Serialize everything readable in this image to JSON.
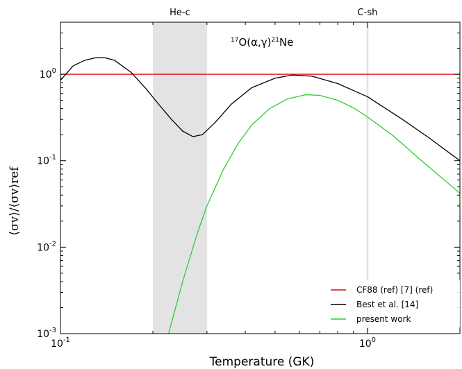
{
  "chart_data": {
    "type": "line",
    "title": "",
    "reaction_label": {
      "sup1": "17",
      "mid": "O(α,γ)",
      "sup2": "21",
      "end": "Ne"
    },
    "xlabel": "Temperature (GK)",
    "ylabel": "⟨σv⟩/⟨σv⟩ref",
    "xscale": "log",
    "yscale": "log",
    "xlim": [
      0.1,
      2.0
    ],
    "ylim": [
      0.001,
      4.0
    ],
    "x_ticks": [
      {
        "value": 0.1,
        "base": "10",
        "exp": "-1"
      },
      {
        "value": 1.0,
        "base": "10",
        "exp": "0"
      }
    ],
    "y_ticks": [
      {
        "value": 0.001,
        "base": "10",
        "exp": "-3"
      },
      {
        "value": 0.01,
        "base": "10",
        "exp": "-2"
      },
      {
        "value": 0.1,
        "base": "10",
        "exp": "-1"
      },
      {
        "value": 1.0,
        "base": "10",
        "exp": "0"
      }
    ],
    "bands": [
      {
        "label": "He-c",
        "x_start": 0.2,
        "x_end": 0.3
      },
      {
        "label": "C-sh",
        "x_start": 0.993,
        "x_end": 1.007
      }
    ],
    "legend_position": "bottom-right",
    "series": [
      {
        "name": "CF88 (ref) [7] (ref)",
        "color": "#e8000b",
        "x": [
          0.1,
          2.0
        ],
        "y": [
          1.0,
          1.0
        ]
      },
      {
        "name": "Best et al. [14]",
        "color": "#000000",
        "x": [
          0.1,
          0.11,
          0.12,
          0.13,
          0.14,
          0.15,
          0.17,
          0.19,
          0.21,
          0.23,
          0.25,
          0.27,
          0.29,
          0.32,
          0.36,
          0.42,
          0.5,
          0.57,
          0.66,
          0.8,
          1.0,
          1.3,
          1.6,
          2.0
        ],
        "y": [
          0.85,
          1.25,
          1.45,
          1.55,
          1.55,
          1.45,
          1.05,
          0.68,
          0.44,
          0.3,
          0.22,
          0.19,
          0.2,
          0.28,
          0.45,
          0.7,
          0.9,
          0.98,
          0.95,
          0.78,
          0.55,
          0.3,
          0.18,
          0.1
        ]
      },
      {
        "name": "present work",
        "color": "#2ecc2e",
        "x": [
          0.225,
          0.25,
          0.28,
          0.3,
          0.34,
          0.38,
          0.42,
          0.48,
          0.55,
          0.63,
          0.7,
          0.8,
          0.9,
          1.0,
          1.2,
          1.5,
          2.0
        ],
        "y": [
          0.001,
          0.004,
          0.015,
          0.03,
          0.08,
          0.16,
          0.26,
          0.4,
          0.52,
          0.58,
          0.57,
          0.5,
          0.41,
          0.32,
          0.2,
          0.1,
          0.042
        ]
      }
    ]
  }
}
